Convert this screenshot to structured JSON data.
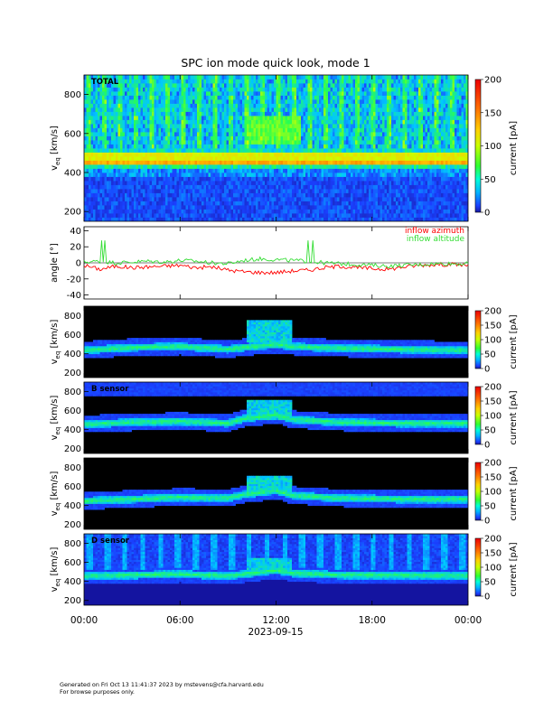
{
  "title": "SPC ion mode quick look, mode 1",
  "footer": {
    "line1": "Generated on Fri Oct 13 11:41:37 2023 by mstevens@cfa.harvard.edu",
    "line2": "For browse purposes only."
  },
  "chart_data": [
    {
      "type": "heatmap",
      "panel": "total",
      "label": "TOTAL",
      "ylabel": "v_eq [km/s]",
      "yticks": [
        200,
        400,
        600,
        800
      ],
      "ylim": [
        150,
        900
      ],
      "colorbar": {
        "label": "current [pA]",
        "ticks": [
          0,
          50,
          100,
          150,
          200
        ],
        "range": [
          0,
          200
        ],
        "colormap": "rainbow"
      },
      "background_color": "#1a1aa8",
      "ridge_v_kms": [
        [
          0,
          470
        ],
        [
          9,
          470
        ],
        [
          10,
          470
        ],
        [
          12,
          470
        ],
        [
          13,
          470
        ],
        [
          24,
          470
        ]
      ],
      "hot_band_v_kms": [
        [
          440,
          470
        ],
        [
          470,
          495
        ]
      ],
      "fast_wind_region": {
        "t_hours": [
          10.2,
          13.6
        ],
        "v_kms": [
          540,
          700
        ]
      }
    },
    {
      "type": "line",
      "panel": "angle",
      "ylabel": "angle [°]",
      "ylim": [
        -45,
        45
      ],
      "yticks": [
        -40,
        -20,
        0,
        20,
        40
      ],
      "series": [
        {
          "name": "inflow azimuth",
          "color": "#ff0000",
          "x_hours": [
            0,
            1,
            2,
            3,
            4,
            5,
            6,
            7,
            8,
            9,
            10,
            11,
            12,
            13,
            14,
            15,
            16,
            17,
            18,
            19,
            20,
            21,
            22,
            23,
            24
          ],
          "y_deg": [
            -3,
            -8,
            -4,
            -6,
            -5,
            -4,
            -3,
            -6,
            -5,
            -9,
            -11,
            -12,
            -12,
            -10,
            -9,
            -6,
            -4,
            -6,
            -7,
            -8,
            -5,
            -3,
            -2,
            -2,
            -3
          ]
        },
        {
          "name": "inflow altitude",
          "color": "#33dd33",
          "x_hours": [
            0,
            1,
            2,
            3,
            4,
            5,
            6,
            7,
            8,
            9,
            10,
            11,
            12,
            13,
            14,
            15,
            16,
            17,
            18,
            19,
            20,
            21,
            22,
            23,
            24
          ],
          "y_deg": [
            1,
            2,
            0,
            1,
            2,
            1,
            3,
            2,
            0,
            -1,
            3,
            5,
            4,
            3,
            2,
            0,
            -1,
            -2,
            -3,
            -4,
            -3,
            -2,
            -1,
            -1,
            -1
          ]
        }
      ],
      "spikes_hours": [
        1.1,
        1.3,
        14.0,
        14.3
      ]
    },
    {
      "type": "heatmap",
      "panel": "sensor1",
      "label": "",
      "ylabel": "v_eq [km/s]",
      "yticks": [
        200,
        400,
        600,
        800
      ],
      "ylim": [
        150,
        900
      ],
      "colorbar": {
        "label": "current [pA]",
        "ticks": [
          0,
          50,
          100,
          150,
          200
        ],
        "range": [
          0,
          200
        ],
        "colormap": "rainbow"
      },
      "background_color": "#000000",
      "ridge_v_kms": [
        [
          0,
          440
        ],
        [
          3,
          470
        ],
        [
          6,
          480
        ],
        [
          9,
          450
        ],
        [
          10,
          470
        ],
        [
          12,
          500
        ],
        [
          13,
          480
        ],
        [
          16,
          460
        ],
        [
          20,
          450
        ],
        [
          24,
          440
        ]
      ],
      "fast_wind_region": {
        "t_hours": [
          10.2,
          13.0
        ],
        "v_kms": [
          560,
          760
        ]
      }
    },
    {
      "type": "heatmap",
      "panel": "sensor2",
      "label": "B sensor",
      "ylabel": "v_eq [km/s]",
      "yticks": [
        200,
        400,
        600,
        800
      ],
      "ylim": [
        150,
        900
      ],
      "colorbar": {
        "label": "current [pA]",
        "ticks": [
          0,
          50,
          100,
          150,
          200
        ],
        "range": [
          0,
          200
        ],
        "colormap": "rainbow"
      },
      "background_color": "#000000",
      "top_band_color": "#1c1cc0",
      "ridge_v_kms": [
        [
          0,
          460
        ],
        [
          3,
          480
        ],
        [
          6,
          490
        ],
        [
          9,
          470
        ],
        [
          10,
          520
        ],
        [
          12,
          560
        ],
        [
          13,
          510
        ],
        [
          16,
          480
        ],
        [
          20,
          470
        ],
        [
          24,
          470
        ]
      ],
      "fast_wind_region": {
        "t_hours": [
          10.2,
          13.0
        ],
        "v_kms": [
          550,
          720
        ]
      }
    },
    {
      "type": "heatmap",
      "panel": "sensor3",
      "label": "",
      "ylabel": "v_eq [km/s]",
      "yticks": [
        200,
        400,
        600,
        800
      ],
      "ylim": [
        150,
        900
      ],
      "colorbar": {
        "label": "current [pA]",
        "ticks": [
          0,
          50,
          100,
          150,
          200
        ],
        "range": [
          0,
          200
        ],
        "colormap": "rainbow"
      },
      "background_color": "#000000",
      "ridge_v_kms": [
        [
          0,
          450
        ],
        [
          3,
          470
        ],
        [
          6,
          490
        ],
        [
          9,
          480
        ],
        [
          10,
          520
        ],
        [
          12,
          560
        ],
        [
          13,
          510
        ],
        [
          16,
          480
        ],
        [
          20,
          470
        ],
        [
          24,
          470
        ]
      ],
      "fast_wind_region": {
        "t_hours": [
          10.2,
          13.0
        ],
        "v_kms": [
          560,
          720
        ]
      }
    },
    {
      "type": "heatmap",
      "panel": "sensor4",
      "label": "D sensor",
      "ylabel": "v_eq [km/s]",
      "yticks": [
        200,
        400,
        600,
        800
      ],
      "ylim": [
        150,
        900
      ],
      "colorbar": {
        "label": "current [pA]",
        "ticks": [
          0,
          50,
          100,
          150,
          200
        ],
        "range": [
          0,
          200
        ],
        "colormap": "rainbow"
      },
      "background_color": "#1414a0",
      "ridge_v_kms": [
        [
          0,
          460
        ],
        [
          3,
          470
        ],
        [
          6,
          480
        ],
        [
          9,
          460
        ],
        [
          10,
          480
        ],
        [
          12,
          520
        ],
        [
          13,
          490
        ],
        [
          16,
          470
        ],
        [
          20,
          470
        ],
        [
          24,
          460
        ]
      ],
      "fast_wind_region": {
        "t_hours": [
          10.2,
          13.0
        ],
        "v_kms": [
          550,
          660
        ]
      }
    }
  ],
  "xaxis": {
    "tick_labels": [
      "00:00",
      "06:00",
      "12:00",
      "18:00",
      "00:00"
    ],
    "tick_hours": [
      0,
      6,
      12,
      18,
      24
    ],
    "date_label": "2023-09-15"
  }
}
